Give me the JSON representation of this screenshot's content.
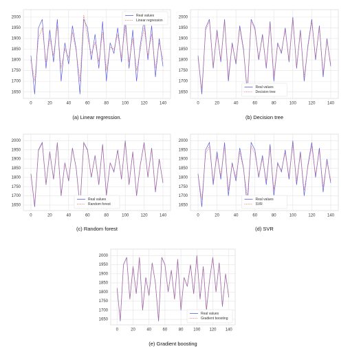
{
  "chart_data": [
    {
      "type": "line",
      "caption": "(a) Linear regression.",
      "legend": "upper right",
      "x": [
        0,
        4,
        8,
        12,
        16,
        20,
        24,
        28,
        32,
        36,
        40,
        44,
        48,
        52,
        56,
        60,
        64,
        68,
        72,
        76,
        80,
        84,
        88,
        92,
        96,
        100,
        104,
        108,
        112,
        116,
        120,
        124,
        128,
        132,
        136,
        140
      ],
      "xlim": [
        -8,
        148
      ],
      "xticks": [
        0,
        20,
        40,
        60,
        80,
        100,
        120,
        140
      ],
      "ylim": [
        1620,
        2035
      ],
      "yticks": [
        1650,
        1700,
        1750,
        1800,
        1850,
        1900,
        1950,
        2000
      ],
      "grid": true,
      "series": [
        {
          "name": "Real values",
          "color": "#5b5bdc",
          "style": "solid",
          "values": [
            1820,
            1640,
            1950,
            1990,
            1760,
            1940,
            1790,
            1990,
            1700,
            1880,
            1780,
            1960,
            1850,
            1640,
            1990,
            1950,
            1800,
            1920,
            1760,
            1980,
            1700,
            1880,
            1830,
            1950,
            1790,
            2000,
            1760,
            1940,
            1700,
            1870,
            1990,
            1800,
            1960,
            1720,
            1900,
            1770
          ]
        },
        {
          "name": "Linear regression",
          "color": "#e06a6a",
          "style": "dotted",
          "values": [
            1800,
            1700,
            1900,
            1950,
            1790,
            1900,
            1820,
            1960,
            1760,
            1850,
            1810,
            1930,
            1840,
            1700,
            2010,
            1910,
            1830,
            1880,
            1790,
            1930,
            1750,
            1860,
            1850,
            1920,
            1810,
            1960,
            1790,
            1900,
            1750,
            1850,
            1950,
            1820,
            1920,
            1760,
            1880,
            1800
          ]
        }
      ]
    },
    {
      "type": "line",
      "caption": "(b) Decision tree",
      "legend": "lower center",
      "x": [
        0,
        4,
        8,
        12,
        16,
        20,
        24,
        28,
        32,
        36,
        40,
        44,
        48,
        52,
        56,
        60,
        64,
        68,
        72,
        76,
        80,
        84,
        88,
        92,
        96,
        100,
        104,
        108,
        112,
        116,
        120,
        124,
        128,
        132,
        136,
        140
      ],
      "xlim": [
        -8,
        148
      ],
      "xticks": [
        0,
        20,
        40,
        60,
        80,
        100,
        120,
        140
      ],
      "ylim": [
        1620,
        2035
      ],
      "yticks": [
        1650,
        1700,
        1750,
        1800,
        1850,
        1900,
        1950,
        2000
      ],
      "grid": true,
      "series": [
        {
          "name": "Real values",
          "color": "#5b5bdc",
          "style": "solid",
          "values": [
            1820,
            1640,
            1950,
            1990,
            1760,
            1940,
            1790,
            1990,
            1700,
            1880,
            1780,
            1960,
            1850,
            1640,
            1990,
            1950,
            1800,
            1920,
            1760,
            1980,
            1700,
            1880,
            1830,
            1950,
            1790,
            2000,
            1760,
            1940,
            1700,
            1870,
            1990,
            1800,
            1960,
            1720,
            1900,
            1770
          ]
        },
        {
          "name": "Decision tree",
          "color": "#e06a6a",
          "style": "dotted",
          "values": [
            1810,
            1660,
            1940,
            1980,
            1770,
            1930,
            1800,
            1980,
            1720,
            1870,
            1790,
            1950,
            1840,
            1660,
            1980,
            1940,
            1810,
            1910,
            1770,
            1970,
            1720,
            1870,
            1840,
            1940,
            1800,
            1990,
            1770,
            1930,
            1720,
            1860,
            1980,
            1810,
            1950,
            1740,
            1890,
            1780
          ]
        }
      ]
    },
    {
      "type": "line",
      "caption": "(c) Random forest",
      "legend": "lower center",
      "x": [
        0,
        4,
        8,
        12,
        16,
        20,
        24,
        28,
        32,
        36,
        40,
        44,
        48,
        52,
        56,
        60,
        64,
        68,
        72,
        76,
        80,
        84,
        88,
        92,
        96,
        100,
        104,
        108,
        112,
        116,
        120,
        124,
        128,
        132,
        136,
        140
      ],
      "xlim": [
        -8,
        148
      ],
      "xticks": [
        0,
        20,
        40,
        60,
        80,
        100,
        120,
        140
      ],
      "ylim": [
        1620,
        2035
      ],
      "yticks": [
        1650,
        1700,
        1750,
        1800,
        1850,
        1900,
        1950,
        2000
      ],
      "grid": true,
      "series": [
        {
          "name": "Real values",
          "color": "#5b5bdc",
          "style": "solid",
          "values": [
            1820,
            1640,
            1950,
            1990,
            1760,
            1940,
            1790,
            1990,
            1700,
            1880,
            1780,
            1960,
            1850,
            1640,
            1990,
            1950,
            1800,
            1920,
            1760,
            1980,
            1700,
            1880,
            1830,
            1950,
            1790,
            2000,
            1760,
            1940,
            1700,
            1870,
            1990,
            1800,
            1960,
            1720,
            1900,
            1770
          ]
        },
        {
          "name": "Random forest",
          "color": "#e06a6a",
          "style": "dotted",
          "values": [
            1818,
            1650,
            1945,
            1985,
            1765,
            1935,
            1795,
            1985,
            1708,
            1878,
            1785,
            1955,
            1848,
            1650,
            1985,
            1945,
            1805,
            1915,
            1765,
            1975,
            1708,
            1878,
            1835,
            1945,
            1795,
            1995,
            1765,
            1935,
            1708,
            1868,
            1985,
            1805,
            1955,
            1728,
            1895,
            1775
          ]
        }
      ]
    },
    {
      "type": "line",
      "caption": "(d) SVR",
      "legend": "lower center",
      "x": [
        0,
        4,
        8,
        12,
        16,
        20,
        24,
        28,
        32,
        36,
        40,
        44,
        48,
        52,
        56,
        60,
        64,
        68,
        72,
        76,
        80,
        84,
        88,
        92,
        96,
        100,
        104,
        108,
        112,
        116,
        120,
        124,
        128,
        132,
        136,
        140
      ],
      "xlim": [
        -8,
        148
      ],
      "xticks": [
        0,
        20,
        40,
        60,
        80,
        100,
        120,
        140
      ],
      "ylim": [
        1620,
        2035
      ],
      "yticks": [
        1650,
        1700,
        1750,
        1800,
        1850,
        1900,
        1950,
        2000
      ],
      "grid": true,
      "series": [
        {
          "name": "Real values",
          "color": "#5b5bdc",
          "style": "solid",
          "values": [
            1820,
            1640,
            1950,
            1990,
            1760,
            1940,
            1790,
            1990,
            1700,
            1880,
            1780,
            1960,
            1850,
            1640,
            1990,
            1950,
            1800,
            1920,
            1760,
            1980,
            1700,
            1880,
            1830,
            1950,
            1790,
            2000,
            1760,
            1940,
            1700,
            1870,
            1990,
            1800,
            1960,
            1720,
            1900,
            1770
          ]
        },
        {
          "name": "SVR",
          "color": "#e06a6a",
          "style": "dotted",
          "values": [
            1815,
            1680,
            1930,
            1970,
            1780,
            1920,
            1810,
            1970,
            1730,
            1870,
            1800,
            1940,
            1845,
            1690,
            1970,
            1930,
            1810,
            1905,
            1780,
            1960,
            1730,
            1870,
            1840,
            1935,
            1805,
            1980,
            1780,
            1925,
            1730,
            1860,
            1970,
            1815,
            1945,
            1750,
            1885,
            1785
          ]
        }
      ]
    },
    {
      "type": "line",
      "caption": "(e) Gradient boosting",
      "legend": "lower right",
      "x": [
        0,
        4,
        8,
        12,
        16,
        20,
        24,
        28,
        32,
        36,
        40,
        44,
        48,
        52,
        56,
        60,
        64,
        68,
        72,
        76,
        80,
        84,
        88,
        92,
        96,
        100,
        104,
        108,
        112,
        116,
        120,
        124,
        128,
        132,
        136,
        140
      ],
      "xlim": [
        -8,
        148
      ],
      "xticks": [
        0,
        20,
        40,
        60,
        80,
        100,
        120,
        140
      ],
      "ylim": [
        1620,
        2035
      ],
      "yticks": [
        1650,
        1700,
        1750,
        1800,
        1850,
        1900,
        1950,
        2000
      ],
      "grid": true,
      "series": [
        {
          "name": "Real values",
          "color": "#5b5bdc",
          "style": "solid",
          "values": [
            1820,
            1640,
            1950,
            1990,
            1760,
            1940,
            1790,
            1990,
            1700,
            1880,
            1780,
            1960,
            1850,
            1640,
            1990,
            1950,
            1800,
            1920,
            1760,
            1980,
            1700,
            1880,
            1830,
            1950,
            1790,
            2000,
            1760,
            1940,
            1700,
            1870,
            1990,
            1800,
            1960,
            1720,
            1900,
            1770
          ]
        },
        {
          "name": "Gradient boosting",
          "color": "#e06a6a",
          "style": "dotted",
          "values": [
            1822,
            1645,
            1948,
            1988,
            1762,
            1938,
            1792,
            1988,
            1704,
            1880,
            1782,
            1958,
            1850,
            1645,
            1988,
            1948,
            1802,
            1918,
            1762,
            1978,
            1704,
            1880,
            1832,
            1948,
            1792,
            1998,
            1762,
            1938,
            1704,
            1870,
            1988,
            1802,
            1958,
            1724,
            1898,
            1772
          ]
        }
      ]
    }
  ]
}
